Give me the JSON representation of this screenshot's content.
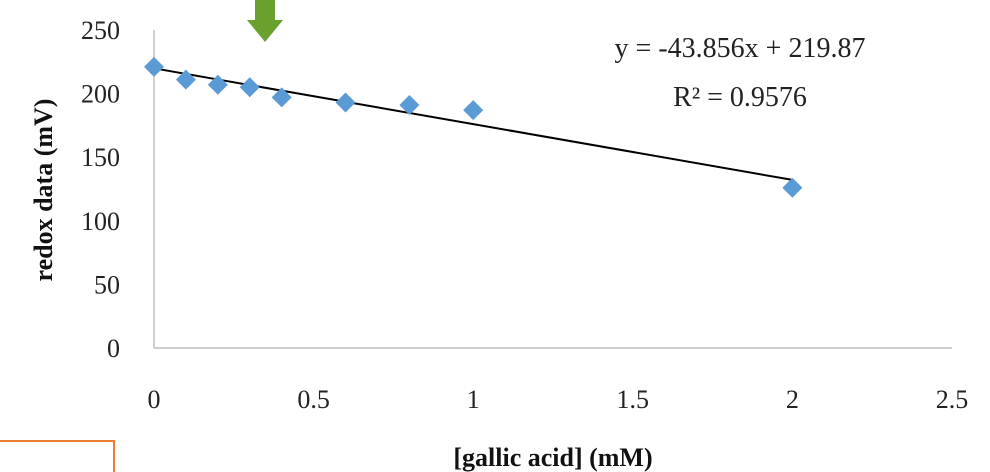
{
  "chart_data": {
    "type": "scatter",
    "xlabel": "[gallic acid] (mM)",
    "ylabel": "redox data (mV)",
    "xlim": [
      0,
      2.5
    ],
    "ylim": [
      0,
      250
    ],
    "x_ticks": [
      "0",
      "0.5",
      "1",
      "1.5",
      "2",
      "2.5"
    ],
    "y_ticks": [
      "0",
      "50",
      "100",
      "150",
      "200",
      "250"
    ],
    "series": [
      {
        "marker": "diamond",
        "color": "#5b9bd5",
        "x": [
          0,
          0.1,
          0.2,
          0.3,
          0.4,
          0.6,
          0.8,
          1.0,
          2.0
        ],
        "y": [
          221,
          211,
          207,
          205,
          197,
          193,
          191,
          187,
          126
        ]
      }
    ],
    "trendline": {
      "slope": -43.856,
      "intercept": 219.87,
      "x_range": [
        0,
        2
      ],
      "color": "#000000"
    },
    "annotations": {
      "equation": "y = -43.856x + 219.87",
      "r_squared": "R² = 0.9576"
    },
    "grid": false,
    "legend": "none"
  },
  "decorations": {
    "arrow_color": "#6aa12e",
    "box_border_color": "#ed7d31"
  }
}
